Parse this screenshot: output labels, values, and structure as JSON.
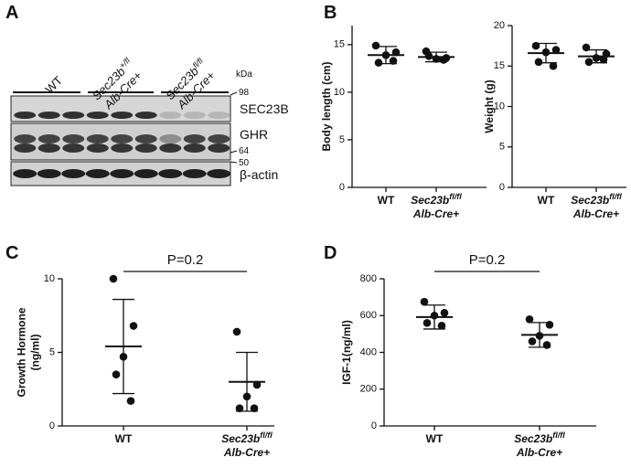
{
  "panel_labels": [
    "A",
    "B",
    "C",
    "D"
  ],
  "blot": {
    "lanes": [
      {
        "name": "WT"
      },
      {
        "name": "Sec23b",
        "sup": "+/fl",
        "line2": "Alb-Cre+"
      },
      {
        "name": "Sec23b",
        "sup": "fl/fl",
        "line2": "Alb-Cre+"
      }
    ],
    "unit": "kDa",
    "markers": [
      98,
      64,
      50
    ],
    "proteins": [
      "SEC23B",
      "GHR",
      "β-actin"
    ]
  },
  "chart_data": [
    {
      "type": "dotplot",
      "ylabel": [
        "Body length (cm)"
      ],
      "categories": [
        {
          "name": "WT"
        },
        {
          "name": "Sec23b",
          "sup": "fl/fl",
          "line2": "Alb-Cre+"
        }
      ],
      "groups": [
        {
          "values": [
            14.9,
            14.2,
            13.9,
            13.1,
            13.3
          ],
          "mean": 13.9,
          "sd": 0.9
        },
        {
          "values": [
            14.3,
            13.6,
            13.5,
            13.8,
            13.4
          ],
          "mean": 13.7,
          "sd": 0.5
        }
      ],
      "ylim": [
        0,
        17
      ],
      "yticks": [
        0,
        5,
        10,
        15
      ]
    },
    {
      "type": "dotplot",
      "ylabel": [
        "Weight (g)"
      ],
      "categories": [
        {
          "name": "WT"
        },
        {
          "name": "Sec23b",
          "sup": "fl/fl",
          "line2": "Alb-Cre+"
        }
      ],
      "groups": [
        {
          "values": [
            17.5,
            17.0,
            16.7,
            15.5,
            15.0
          ],
          "mean": 16.6,
          "sd": 1.2
        },
        {
          "values": [
            17.3,
            16.5,
            16.0,
            15.5,
            15.8
          ],
          "mean": 16.2,
          "sd": 0.8
        }
      ],
      "ylim": [
        0,
        20
      ],
      "yticks": [
        0,
        5,
        10,
        15,
        20
      ]
    },
    {
      "type": "dotplot",
      "ylabel": [
        "Growth Hormone",
        "(ng/ml)"
      ],
      "annotation": "P=0.2",
      "categories": [
        {
          "name": "WT"
        },
        {
          "name": "Sec23b",
          "sup": "fl/fl",
          "line2": "Alb-Cre+"
        }
      ],
      "groups": [
        {
          "values": [
            10,
            6.8,
            4.7,
            3.5,
            1.7
          ],
          "mean": 5.4,
          "sd": 3.2
        },
        {
          "values": [
            6.4,
            2.8,
            2.0,
            1.2,
            1.2
          ],
          "mean": 3.0,
          "sd": 2.0
        }
      ],
      "ylim": [
        0,
        10
      ],
      "yticks": [
        0,
        5,
        10
      ]
    },
    {
      "type": "dotplot",
      "ylabel": [
        "IGF-1(ng/ml)"
      ],
      "annotation": "P=0.2",
      "categories": [
        {
          "name": "WT"
        },
        {
          "name": "Sec23b",
          "sup": "fl/fl",
          "line2": "Alb-Cre+"
        }
      ],
      "groups": [
        {
          "values": [
            675,
            615,
            600,
            560,
            545
          ],
          "mean": 592,
          "sd": 65
        },
        {
          "values": [
            580,
            550,
            490,
            460,
            440
          ],
          "mean": 495,
          "sd": 67
        }
      ],
      "ylim": [
        0,
        800
      ],
      "yticks": [
        0,
        200,
        400,
        600,
        800
      ]
    }
  ]
}
